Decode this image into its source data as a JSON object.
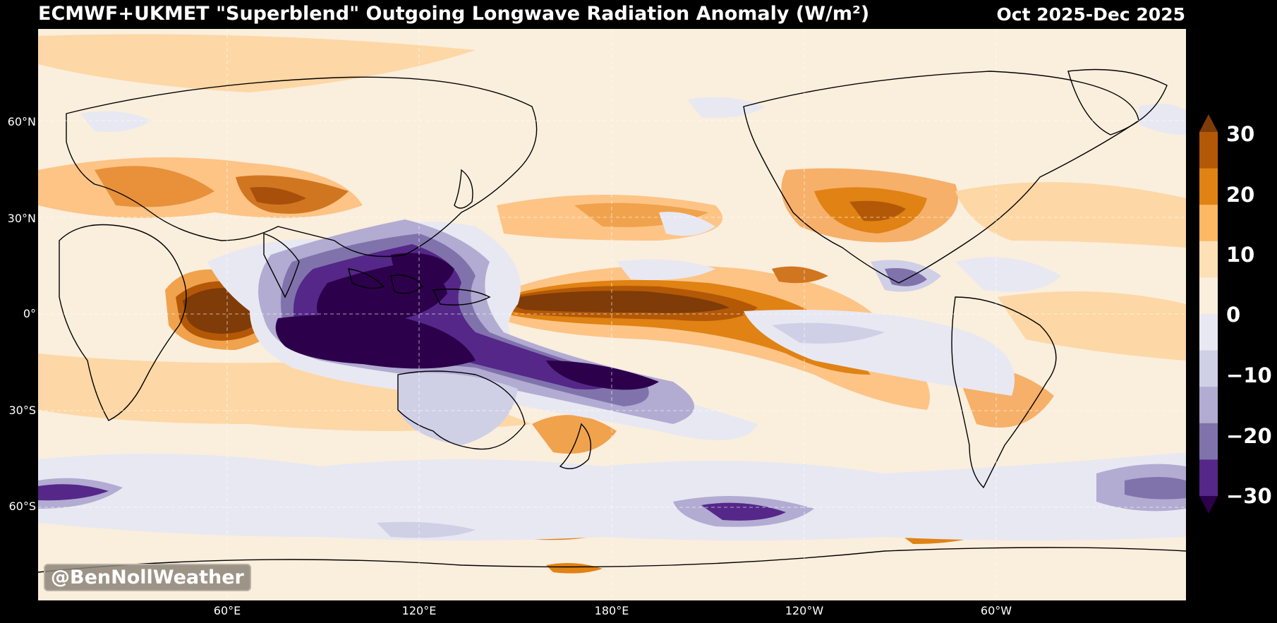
{
  "header": {
    "title": "ECMWF+UKMET \"Superblend\" Outgoing Longwave Radiation Anomaly (W/m²)",
    "date_range": "Oct 2025-Dec 2025"
  },
  "watermark": "@BenNollWeather",
  "map": {
    "projection": "equirectangular",
    "central_longitude": "180°",
    "lat_labels": [
      "60°N",
      "30°N",
      "0°",
      "30°S",
      "60°S"
    ],
    "lon_labels": [
      "60°E",
      "120°E",
      "180°E",
      "120°W",
      "60°W"
    ],
    "gridlines": true,
    "background_color": "#faeedd"
  },
  "colorbar": {
    "ticks": [
      "30",
      "20",
      "10",
      "0",
      "−10",
      "−20",
      "−30"
    ],
    "colors": [
      "#7f3b08",
      "#b35806",
      "#e08214",
      "#fdb863",
      "#fee0b6",
      "#faeedd",
      "#e8e8f2",
      "#cfcfe6",
      "#b2abd2",
      "#8073ac",
      "#542788",
      "#2d004b"
    ],
    "extend": "both"
  }
}
